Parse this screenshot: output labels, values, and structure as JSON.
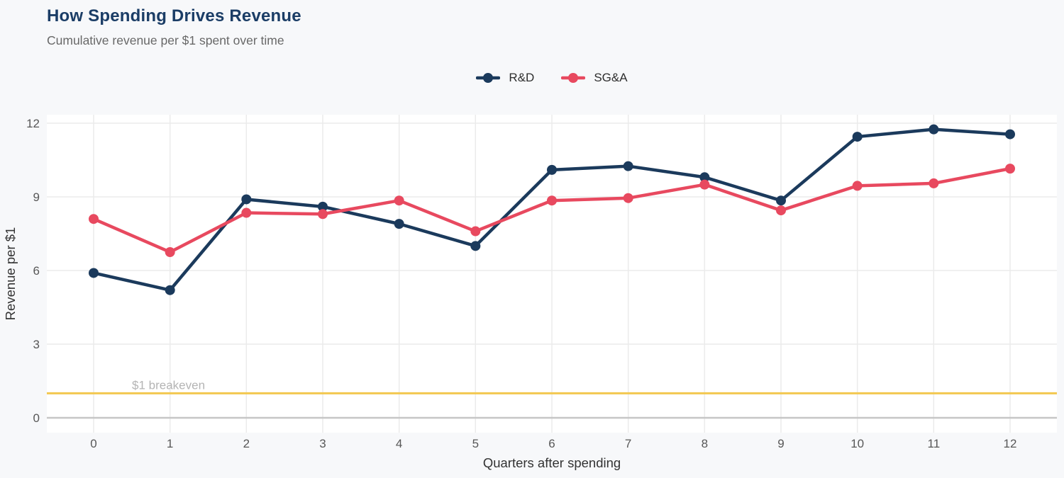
{
  "chart_data": {
    "type": "line",
    "title": "How Spending Drives Revenue",
    "subtitle": "Cumulative revenue per $1 spent over time",
    "xlabel": "Quarters after spending",
    "ylabel": "Revenue per $1",
    "x": [
      0,
      1,
      2,
      3,
      4,
      5,
      6,
      7,
      8,
      9,
      10,
      11,
      12
    ],
    "xticks": [
      "0",
      "1",
      "2",
      "3",
      "4",
      "5",
      "6",
      "7",
      "8",
      "9",
      "10",
      "11",
      "12"
    ],
    "yticks": [
      0,
      3,
      6,
      9,
      12
    ],
    "xlim": [
      -0.6,
      12.6
    ],
    "ylim": [
      -0.6,
      12.35
    ],
    "grid": true,
    "legend_position": "top-center",
    "series": [
      {
        "name": "R&D",
        "color": "#1b3a5c",
        "values": [
          5.9,
          5.2,
          8.9,
          8.6,
          7.9,
          7.0,
          10.1,
          10.25,
          9.8,
          8.85,
          11.45,
          11.75,
          11.55
        ]
      },
      {
        "name": "SG&A",
        "color": "#e8495f",
        "values": [
          8.1,
          6.75,
          8.35,
          8.3,
          8.85,
          7.6,
          8.85,
          8.95,
          9.5,
          8.45,
          9.45,
          9.55,
          10.15
        ]
      }
    ],
    "annotation": {
      "label": "$1 breakeven",
      "value": 1,
      "line_color": "#f3c84f",
      "label_color": "#b4b4b4"
    }
  },
  "palette": {
    "title_navy": "#1b3d66",
    "series_navy": "#1b3a5c",
    "series_rose": "#e8495f",
    "breakeven_yellow": "#f3c84f",
    "plot_background": "#ffffff",
    "page_background": "#f7f8fa",
    "gridline": "#ebebeb",
    "zero_line": "#c6c6c6",
    "tick_text": "#575757",
    "axis_title_text": "#333333"
  }
}
